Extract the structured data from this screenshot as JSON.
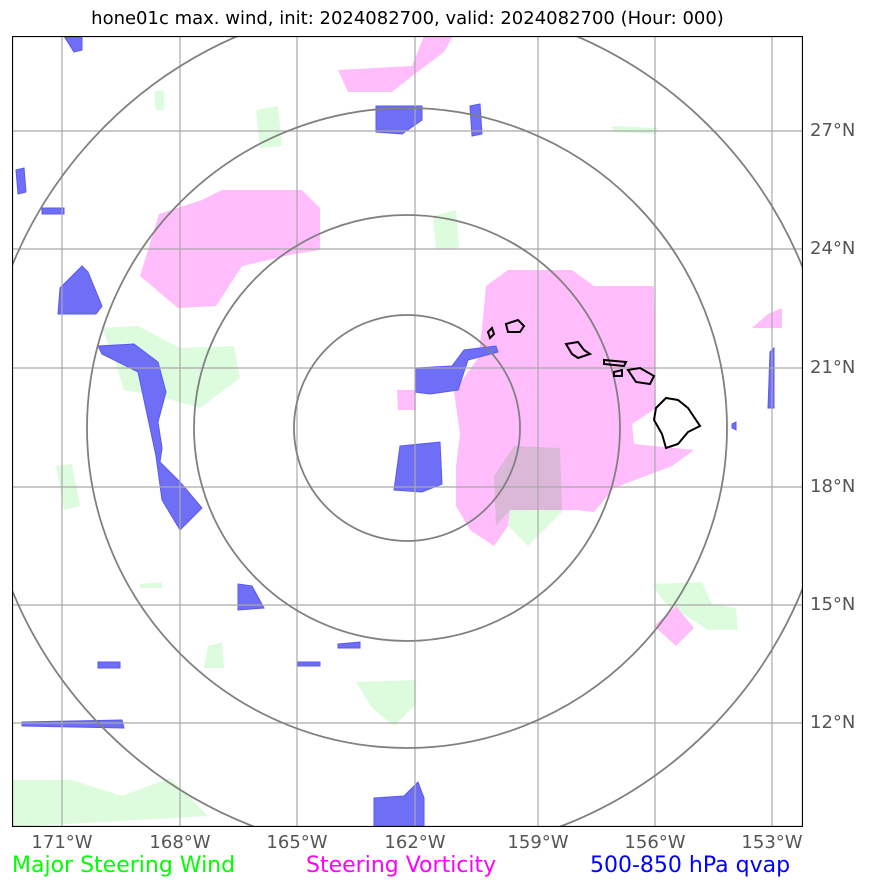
{
  "title": "hone01c max. wind, init: 2024082700, valid: 2024082700 (Hour: 000)",
  "lat_labels": [
    "27°N",
    "24°N",
    "21°N",
    "18°N",
    "15°N",
    "12°N"
  ],
  "lon_labels": [
    "171°W",
    "168°W",
    "165°W",
    "162°W",
    "159°W",
    "156°W",
    "153°W"
  ],
  "legend": [
    {
      "label": "Major Steering Wind",
      "color": "#00ff00"
    },
    {
      "label": "Steering Vorticity",
      "color": "#ff00ff"
    },
    {
      "label": "500-850 hPa qvap",
      "color": "#0000ff"
    }
  ],
  "colors": {
    "steering_wind_fill": "#ddfcdd",
    "vorticity_fill": "#ffbdfb",
    "qvap_fill": "#6e6ef7",
    "range_rings": "#808080",
    "gridlines": "#a9a9a9",
    "coastline": "#000000"
  },
  "map": {
    "region": "Hawaiian Islands, central North Pacific",
    "range_ring_count": 4,
    "icons": [
      "hawaii-island-outline",
      "maui-outline",
      "molokai-outline",
      "oahu-outline",
      "kauai-outline"
    ]
  }
}
